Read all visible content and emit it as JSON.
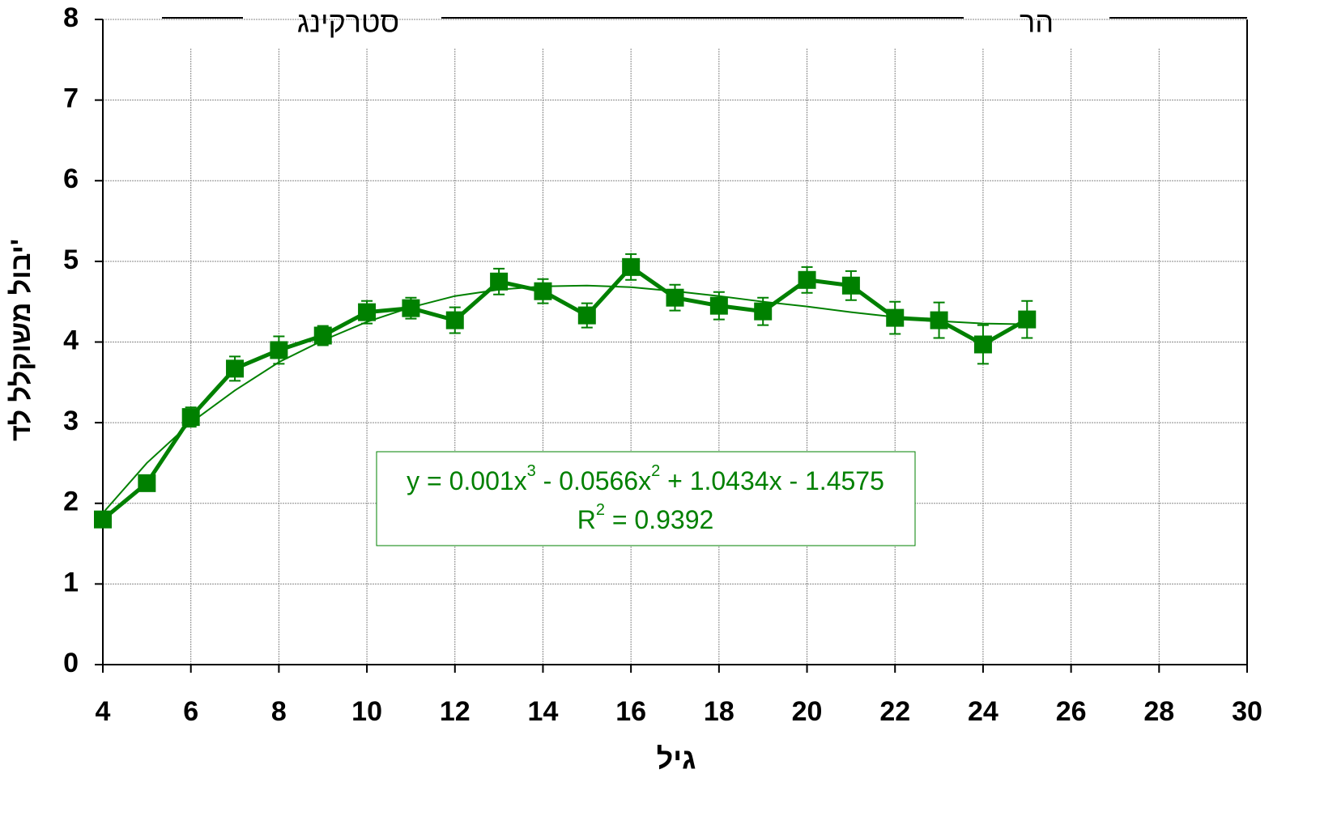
{
  "chart_data": {
    "type": "line",
    "x_label": "גיל",
    "y_label": "יבול משוקלל לד'",
    "x": [
      4,
      5,
      6,
      7,
      8,
      9,
      10,
      11,
      12,
      13,
      14,
      15,
      16,
      17,
      18,
      19,
      20,
      21,
      22,
      23,
      24,
      25
    ],
    "series": [
      {
        "color": "#008000",
        "values": [
          1.8,
          2.25,
          3.07,
          3.67,
          3.9,
          4.08,
          4.37,
          4.42,
          4.27,
          4.75,
          4.63,
          4.33,
          4.93,
          4.55,
          4.45,
          4.38,
          4.77,
          4.7,
          4.3,
          4.27,
          3.97,
          4.28
        ],
        "errors": [
          0.05,
          0.07,
          0.12,
          0.15,
          0.17,
          0.12,
          0.14,
          0.13,
          0.16,
          0.16,
          0.15,
          0.15,
          0.16,
          0.16,
          0.17,
          0.17,
          0.16,
          0.18,
          0.2,
          0.22,
          0.24,
          0.23
        ],
        "trend": [
          1.88,
          2.5,
          3.0,
          3.4,
          3.75,
          4.02,
          4.25,
          4.43,
          4.57,
          4.65,
          4.69,
          4.7,
          4.68,
          4.63,
          4.57,
          4.5,
          4.44,
          4.37,
          4.31,
          4.26,
          4.23,
          4.22
        ]
      }
    ],
    "equation": [
      "y = 0.001x",
      "3",
      " - 0.0566x",
      "2",
      " + 1.0434x - 1.4575"
    ],
    "r_squared": [
      "R",
      "2",
      " = 0.9392"
    ],
    "annotations": [
      "סטרקינג",
      "הר"
    ],
    "xlim": [
      4,
      30
    ],
    "xticks": [
      4,
      6,
      8,
      10,
      12,
      14,
      16,
      18,
      20,
      22,
      24,
      26,
      28,
      30
    ],
    "ylim": [
      0,
      8
    ],
    "yticks": [
      0,
      1,
      2,
      3,
      4,
      5,
      6,
      7,
      8
    ],
    "grid": true
  }
}
